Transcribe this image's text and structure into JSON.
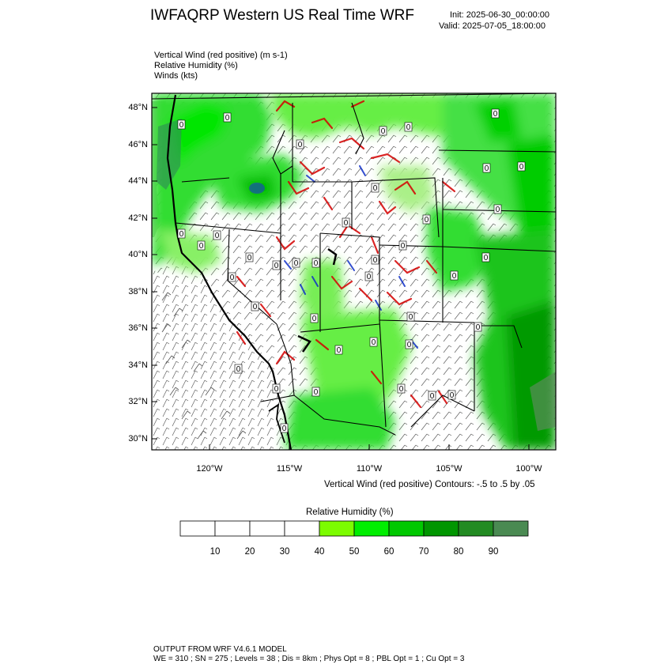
{
  "header": {
    "title": "IWFAQRP Western US Real Time WRF",
    "init": "Init: 2025-06-30_00:00:00",
    "valid": "Valid: 2025-07-05_18:00:00"
  },
  "fields": [
    "Vertical Wind (red positive)   (m s-1)",
    "Relative Humidity   (%)",
    "Winds   (kts)"
  ],
  "map": {
    "lat_labels": [
      "48°N",
      "46°N",
      "44°N",
      "42°N",
      "40°N",
      "38°N",
      "36°N",
      "34°N",
      "32°N",
      "30°N"
    ],
    "lon_labels": [
      "120°W",
      "115°W",
      "110°W",
      "105°W",
      "100°W"
    ],
    "wind_barb_value": "0",
    "colors": {
      "positive_vertical_wind": "#d40000",
      "negative_vertical_wind": "#1030c8",
      "ocean": "#c6cad0"
    }
  },
  "contour_note": "Vertical Wind (red positive) Contours: -.5 to .5 by .05",
  "colorbar": {
    "title": "Relative Humidity  (%)",
    "ticks": [
      "10",
      "20",
      "30",
      "40",
      "50",
      "60",
      "70",
      "80",
      "90"
    ],
    "colors": [
      "#ffffff",
      "#ffffff",
      "#ffffff",
      "#ffffff",
      "#7cfc00",
      "#00ee00",
      "#00c800",
      "#009600",
      "#228b22",
      "#4a8a52"
    ]
  },
  "footer": {
    "line1": "OUTPUT FROM WRF V4.6.1 MODEL",
    "line2": "WE = 310 ; SN = 275 ; Levels = 38 ; Dis = 8km ; Phys Opt = 8 ; PBL Opt = 1 ; Cu Opt = 3"
  }
}
